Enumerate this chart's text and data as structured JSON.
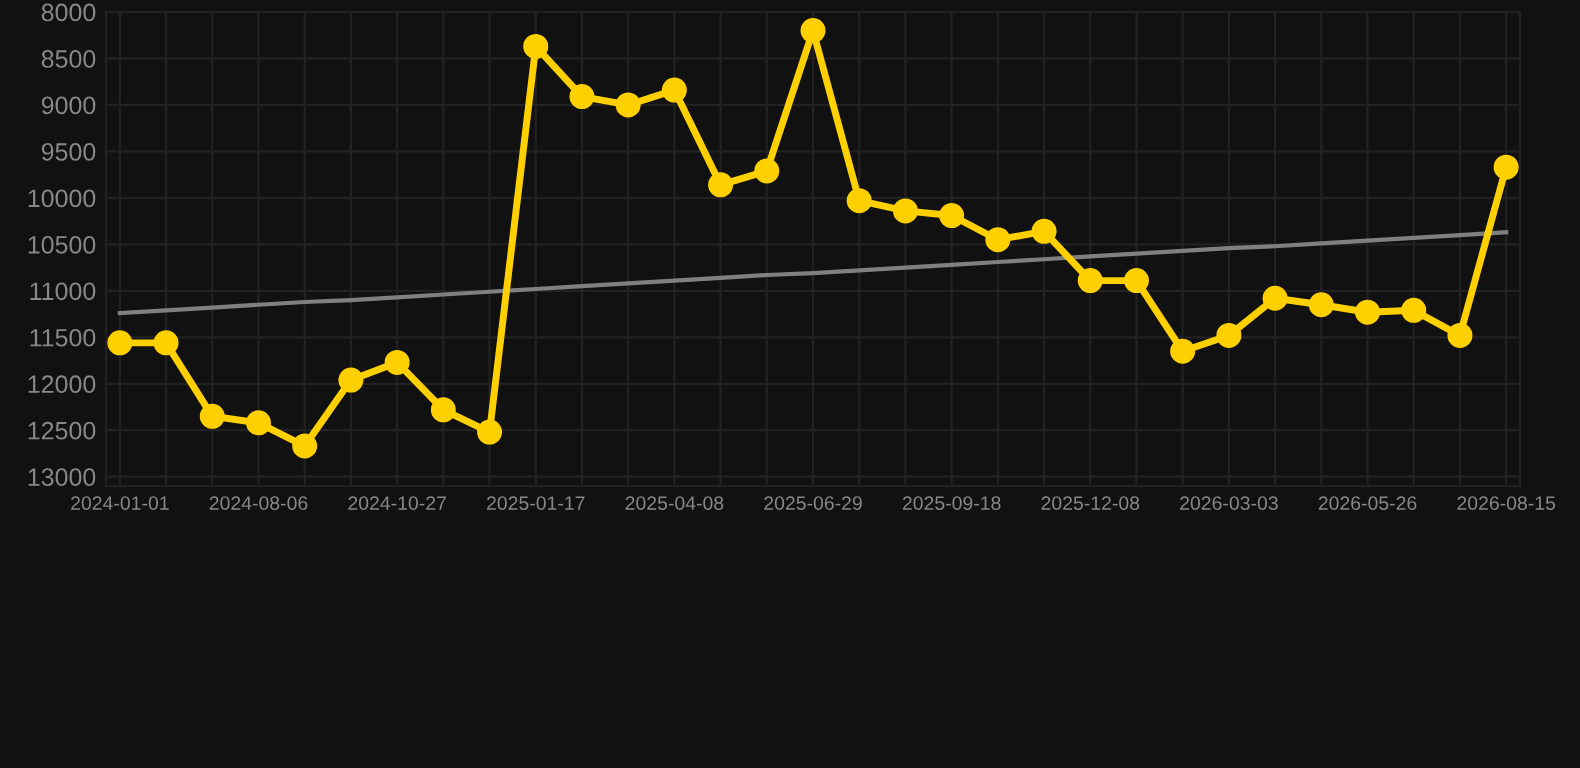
{
  "chart_data": {
    "type": "line",
    "categories": [
      "2024-01-01",
      null,
      null,
      "2024-08-06",
      null,
      null,
      "2024-10-27",
      null,
      null,
      "2025-01-17",
      null,
      null,
      "2025-04-08",
      null,
      null,
      "2025-06-29",
      null,
      null,
      "2025-09-18",
      null,
      null,
      "2025-12-08",
      null,
      null,
      "2026-03-03",
      null,
      null,
      "2026-05-26",
      null,
      null,
      "2026-08-15"
    ],
    "series": [
      {
        "color": "#ffd000",
        "marker": "circle",
        "values": [
          11560,
          11560,
          12350,
          12420,
          12670,
          11960,
          11770,
          12280,
          12520,
          8370,
          8910,
          9000,
          8840,
          9860,
          9710,
          8200,
          10030,
          10140,
          10190,
          10450,
          10360,
          10890,
          10890,
          11650,
          11480,
          11080,
          11150,
          11230,
          11210,
          11480,
          9670
        ]
      },
      {
        "color": "#808080",
        "marker": "none",
        "values": [
          11240,
          11210,
          11180,
          11150,
          11120,
          11100,
          11070,
          11040,
          11010,
          10980,
          10950,
          10920,
          10890,
          10860,
          10830,
          10810,
          10780,
          10750,
          10720,
          10690,
          10660,
          10630,
          10600,
          10570,
          10540,
          10520,
          10490,
          10460,
          10430,
          10400,
          10370
        ]
      }
    ],
    "ylim": [
      13100,
      8000
    ],
    "yticks": [
      8000,
      8500,
      9000,
      9500,
      10000,
      10500,
      11000,
      11500,
      12000,
      12500,
      13000
    ],
    "grid": true
  }
}
